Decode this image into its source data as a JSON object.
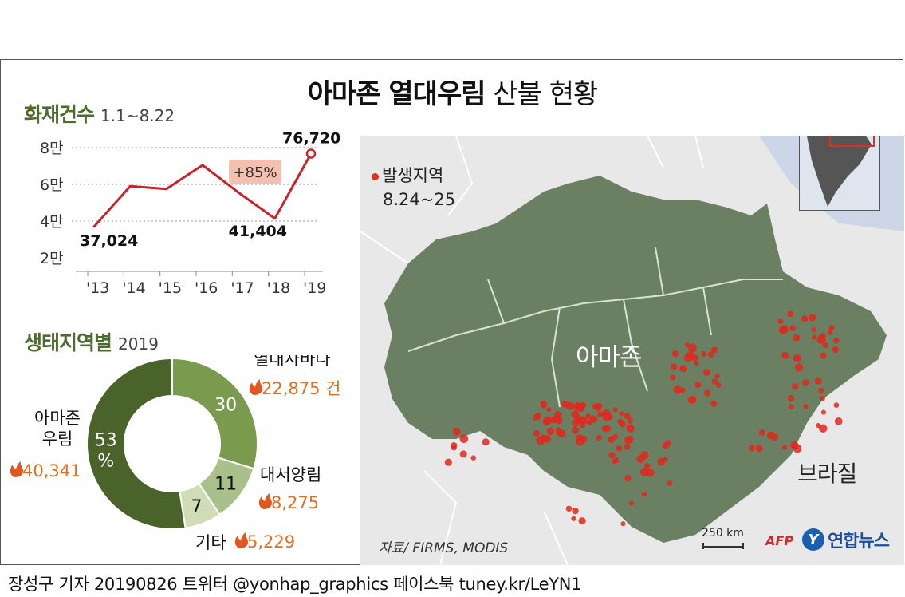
{
  "title_bold": "아마존 열대우림",
  "title_light": "산불 현황",
  "line_section": {
    "title": "화재건수",
    "subtitle": "1.1~8.22"
  },
  "donut_section": {
    "title": "생태지역별",
    "subtitle": "2019"
  },
  "map": {
    "legend_label": "발생지역",
    "legend_dates": "8.24~25",
    "region_label": "아마존",
    "country_label": "브라질",
    "scale_label": "250 km",
    "source": "자료/ FIRMS, MODIS"
  },
  "logos": {
    "afp": "AFP",
    "yonhap_mark": "Y",
    "yonhap": "연합뉴스"
  },
  "footer": "장성구 기자  20190826  트위터 @yonhap_graphics  페이스북 tuney.kr/LeYN1",
  "colors": {
    "green_dark": "#4a632b",
    "green_mid": "#7a9a4d",
    "green_light": "#aac08a",
    "green_pale": "#cfdcb5",
    "line_red": "#c8242b",
    "fire_orange": "#e07020",
    "highlight_bg": "#f4c0b0",
    "map_land": "#6b8062",
    "map_bg": "#e8e8e8"
  },
  "chart_data": [
    {
      "type": "line",
      "categories": [
        "'13",
        "'14",
        "'15",
        "'16",
        "'17",
        "'18",
        "'19"
      ],
      "values": [
        37024,
        59000,
        57500,
        70500,
        55500,
        41404,
        76720
      ],
      "y_ticks": [
        "2만",
        "4만",
        "6만",
        "8만"
      ],
      "ylim": [
        20000,
        80000
      ],
      "labels": [
        {
          "index": 0,
          "text": "37,024"
        },
        {
          "index": 5,
          "text": "41,404"
        },
        {
          "index": 6,
          "text": "76,720"
        }
      ],
      "annotation": "+85%",
      "grid": true
    },
    {
      "type": "pie",
      "slices": [
        {
          "key": "savanna",
          "name": "열대사바나",
          "value": 30,
          "count": "22,875 건",
          "color": "#7a9a4d"
        },
        {
          "key": "atlantic",
          "name": "대서양림",
          "value": 11,
          "count": "8,275",
          "color": "#aac08a"
        },
        {
          "key": "other",
          "name": "기타",
          "value": 7,
          "count": "5,229",
          "color": "#cfdcb5"
        },
        {
          "key": "amazon",
          "name": "아마존\n우림",
          "value": 53,
          "value_label": "53\n%",
          "count": "40,341",
          "color": "#4a632b"
        }
      ]
    }
  ]
}
